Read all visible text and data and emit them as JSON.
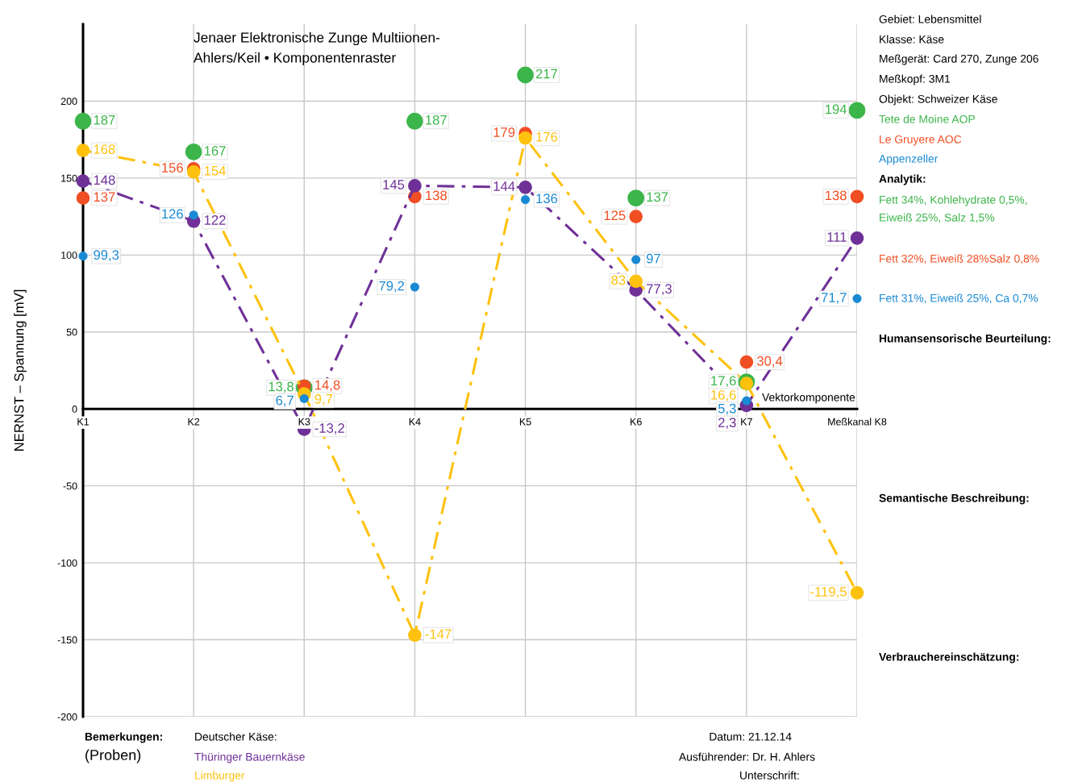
{
  "chart_data": {
    "type": "line",
    "title": "Jenaer Elektronische Zunge Multiionen-",
    "subtitle": "Ahlers/Keil • Komponentenraster",
    "ylabel": "NERNST – Spannung [mV]",
    "categories": [
      "K1",
      "K2",
      "K3",
      "K4",
      "K5",
      "K6",
      "K7",
      "Meßkanal K8"
    ],
    "ylim": [
      -200,
      250
    ],
    "yticks": [
      -200,
      -150,
      -100,
      -50,
      0,
      50,
      100,
      150,
      200
    ],
    "grid": true,
    "marker": "circle",
    "series": [
      {
        "name": "Tete de Moine AOP",
        "type": "scatter",
        "color": "#3cb54a",
        "values": [
          187,
          167,
          13.8,
          187,
          217,
          137,
          17.6,
          194
        ],
        "value_labels": [
          "187",
          "167",
          "13,8",
          "187",
          "217",
          "137",
          "17,6",
          "194"
        ]
      },
      {
        "name": "Le Gruyere AOC",
        "type": "scatter",
        "color": "#f04e23",
        "values": [
          137,
          156,
          14.8,
          138,
          179,
          125,
          30.4,
          138
        ],
        "value_labels": [
          "137",
          "156",
          "14,8",
          "138",
          "179",
          "125",
          "30,4",
          "138"
        ]
      },
      {
        "name": "Appenzeller",
        "type": "scatter",
        "color": "#1a8ad4",
        "values": [
          99.3,
          126,
          6.7,
          79.2,
          136,
          97,
          5.3,
          71.7
        ],
        "value_labels": [
          "99,3",
          "126",
          "6,7",
          "79,2",
          "136",
          "97",
          "5,3",
          "71,7"
        ]
      },
      {
        "name": "Thüringer Bauernkäse",
        "line_style": "dashed",
        "color": "#6f3198",
        "values": [
          148,
          122,
          -13.2,
          145,
          144,
          77.3,
          2.3,
          111
        ],
        "value_labels": [
          "148",
          "122",
          "-13,2",
          "145",
          "144",
          "77,3",
          "2,3",
          "111"
        ]
      },
      {
        "name": "Limburger",
        "line_style": "dashed",
        "color": "#fec10e",
        "values": [
          168,
          154,
          9.7,
          -147,
          176,
          83,
          16.6,
          -119.5
        ],
        "value_labels": [
          "168",
          "154",
          "9,7",
          "-147",
          "176",
          "83",
          "16,6",
          "-119,5"
        ]
      }
    ],
    "annotations": [
      "Gebiet: Lebensmittel",
      "Klasse: Käse",
      "Meßgerät: Card 270, Zunge 206",
      "Meßkopf: 3M1",
      "Objekt: Schweizer Käse",
      "Analytik:",
      "Fett 34%, Kohlehydrate 0,5%,\nEiweiß 25%, Salz 1,5%",
      "Fett 32%, Eiweiß 28%Salz 0,8%",
      "Fett 31%, Eiweiß 25%, Ca 0,7%",
      "Humansensorische Beurteilung:",
      "Semantische Beschreibung:",
      "Verbrauchereinschätzung:",
      "Bemerkungen:",
      "(Proben)",
      "Deutscher Käse:",
      "Datum: 21.12.14",
      "Ausführender: Dr. H. Ahlers",
      "Unterschrift:",
      "Vektorkomponente"
    ]
  }
}
